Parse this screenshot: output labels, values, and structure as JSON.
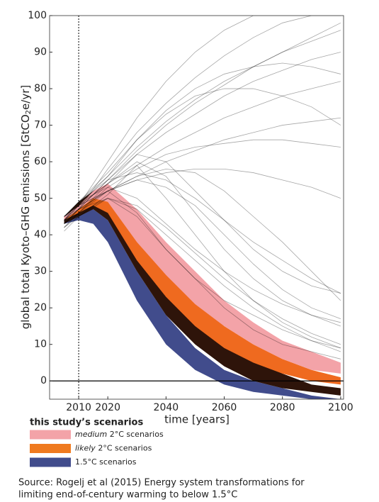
{
  "chart_data": {
    "type": "line",
    "ylabel_parts": [
      "global total Kyoto–GHG emissions [GtCO",
      "2",
      "e/yr]"
    ],
    "xlabel": "time [years]",
    "xlim": [
      2000,
      2101
    ],
    "ylim": [
      -5,
      100
    ],
    "xticks": [
      2010,
      2020,
      2040,
      2060,
      2080,
      2100
    ],
    "yticks": [
      0,
      10,
      20,
      30,
      40,
      50,
      60,
      70,
      80,
      90,
      100
    ],
    "vline": 2010,
    "hline": 0,
    "x": [
      2005,
      2010,
      2015,
      2020,
      2030,
      2040,
      2050,
      2060,
      2070,
      2080,
      2090,
      2100
    ],
    "bands": [
      {
        "color": "#414c8c",
        "upper": [
          45,
          47,
          47,
          44,
          30,
          18,
          9,
          3,
          0,
          -2,
          -4,
          -5
        ],
        "lower": [
          43,
          44,
          43,
          38,
          22,
          10,
          3,
          -1,
          -3,
          -4,
          -5,
          -5
        ]
      },
      {
        "color": "#2e140a",
        "upper": [
          45,
          49,
          52,
          52,
          42,
          30,
          20,
          12,
          6,
          2,
          -1,
          -2
        ],
        "lower": [
          43,
          45,
          47,
          44,
          30,
          18,
          10,
          4,
          0,
          -2,
          -3,
          -4
        ]
      },
      {
        "color": "#ef6a1f",
        "upper": [
          45,
          48,
          51,
          52,
          40,
          30,
          22,
          15,
          10,
          6,
          3,
          1
        ],
        "lower": [
          44,
          46,
          48,
          46,
          33,
          23,
          15,
          9,
          5,
          2,
          0,
          -1
        ]
      },
      {
        "color": "#f3a3a8",
        "upper": [
          45,
          48,
          52,
          54,
          47,
          38,
          30,
          22,
          16,
          11,
          8,
          5
        ],
        "lower": [
          44,
          47,
          50,
          49,
          38,
          29,
          21,
          15,
          10,
          6,
          3,
          2
        ]
      }
    ],
    "scenario_color": "#000000",
    "scenario_x": [
      2005,
      2010,
      2020,
      2030,
      2040,
      2050,
      2060,
      2070,
      2080,
      2090,
      2100
    ],
    "scenarios": [
      [
        45,
        48,
        60,
        72,
        82,
        90,
        96,
        100,
        100,
        100,
        100
      ],
      [
        44,
        47,
        58,
        68,
        76,
        83,
        89,
        94,
        98,
        100,
        100
      ],
      [
        45,
        49,
        56,
        64,
        71,
        77,
        82,
        86,
        90,
        93,
        96
      ],
      [
        43,
        47,
        55,
        62,
        68,
        73,
        78,
        82,
        85,
        88,
        90
      ],
      [
        44,
        48,
        54,
        59,
        64,
        68,
        72,
        75,
        78,
        80,
        82
      ],
      [
        45,
        47,
        52,
        56,
        60,
        63,
        66,
        68,
        70,
        71,
        72
      ],
      [
        42,
        46,
        53,
        58,
        62,
        64,
        65,
        66,
        66,
        65,
        64
      ],
      [
        44,
        48,
        52,
        55,
        57,
        58,
        58,
        57,
        55,
        53,
        50
      ],
      [
        45,
        49,
        55,
        57,
        55,
        50,
        44,
        38,
        33,
        28,
        24
      ],
      [
        43,
        47,
        52,
        55,
        53,
        48,
        40,
        32,
        25,
        20,
        17
      ],
      [
        44,
        48,
        54,
        60,
        56,
        46,
        36,
        28,
        22,
        18,
        15
      ],
      [
        42,
        45,
        50,
        48,
        42,
        35,
        28,
        22,
        17,
        13,
        10
      ],
      [
        45,
        49,
        53,
        50,
        43,
        36,
        30,
        25,
        21,
        18,
        16
      ],
      [
        41,
        45,
        51,
        59,
        50,
        40,
        30,
        22,
        16,
        12,
        9
      ],
      [
        44,
        47,
        50,
        47,
        40,
        33,
        26,
        20,
        15,
        11,
        8
      ],
      [
        43,
        46,
        52,
        56,
        58,
        57,
        52,
        45,
        38,
        30,
        22
      ],
      [
        45,
        48,
        56,
        66,
        74,
        80,
        84,
        86,
        87,
        86,
        84
      ],
      [
        44,
        49,
        57,
        66,
        73,
        78,
        80,
        80,
        78,
        75,
        70
      ],
      [
        43,
        47,
        55,
        63,
        70,
        76,
        81,
        86,
        90,
        94,
        98
      ],
      [
        45,
        48,
        52,
        46,
        36,
        28,
        22,
        18,
        14,
        11,
        9
      ],
      [
        44,
        46,
        50,
        45,
        36,
        28,
        20,
        14,
        10,
        8,
        6
      ],
      [
        42,
        46,
        54,
        62,
        60,
        52,
        44,
        36,
        30,
        26,
        24
      ]
    ],
    "legend_title": "this study’s scenarios",
    "legend": [
      {
        "color": "#f3a3a8",
        "parts": [
          "medium",
          " 2°C scenarios"
        ]
      },
      {
        "color": "#ef7a1f",
        "parts": [
          "likely",
          " 2°C scenarios"
        ]
      },
      {
        "color": "#414c8c",
        "parts": [
          "",
          "1.5°C scenarios"
        ]
      }
    ],
    "source": [
      "Source: Rogelj et al (2015) Energy system transformations for",
      "limiting end-of-century warming to below 1.5°C"
    ]
  }
}
